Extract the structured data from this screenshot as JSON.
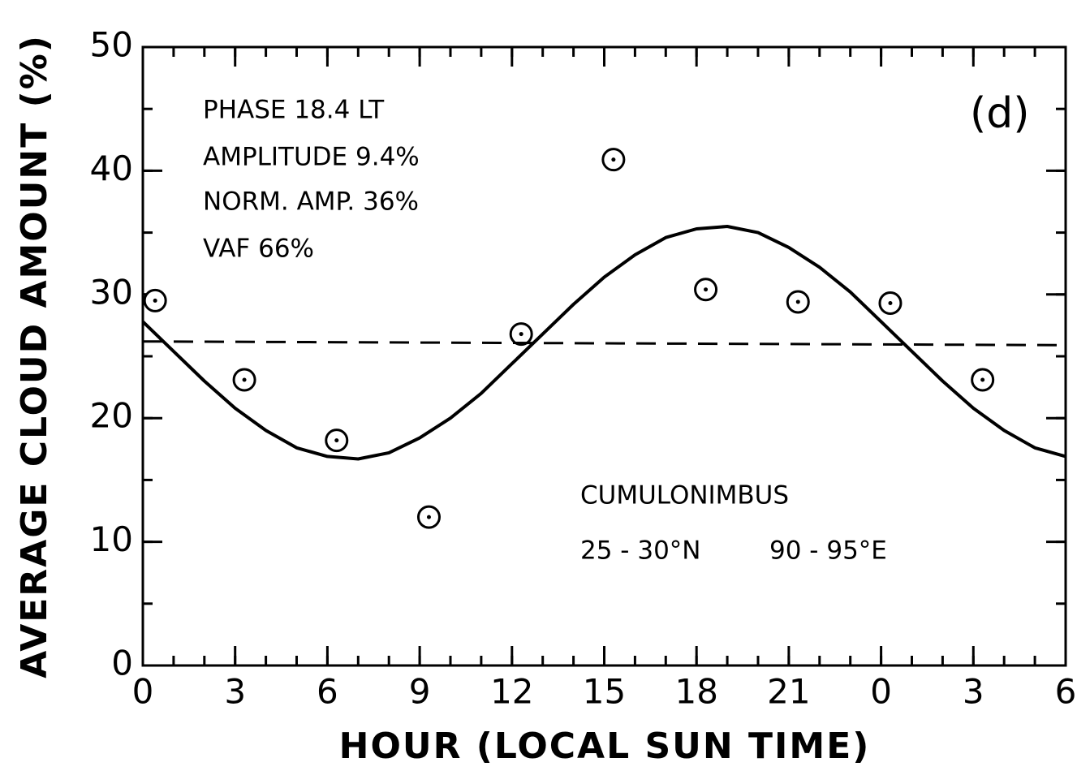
{
  "chart_data": {
    "type": "scatter",
    "xlabel": "HOUR (LOCAL SUN TIME)",
    "ylabel": "AVERAGE CLOUD AMOUNT (%)",
    "xlim": [
      0,
      30
    ],
    "xticks": [
      0,
      3,
      6,
      9,
      12,
      15,
      18,
      21,
      {
        "value": 24,
        "label": "0"
      },
      {
        "value": 27,
        "label": "3"
      },
      {
        "value": 30,
        "label": "6"
      }
    ],
    "ylim": [
      0,
      50
    ],
    "yticks": [
      0,
      10,
      20,
      30,
      40,
      50
    ],
    "annotations": [
      "PHASE 18.4 LT",
      "AMPLITUDE 9.4%",
      "NORM. AMP. 36%",
      "VAF 66%",
      "(d)",
      "CUMULONIMBUS",
      "25 - 30°N",
      "90 - 95°E"
    ],
    "series": [
      {
        "style": "marker",
        "color": "#000000",
        "x": [
          0.4,
          3.3,
          6.3,
          9.3,
          12.3,
          15.3,
          18.3,
          21.3,
          24.3,
          27.3
        ],
        "values": [
          29.5,
          23.1,
          18.2,
          12.0,
          26.8,
          40.9,
          30.4,
          29.4,
          29.3,
          23.1
        ]
      },
      {
        "style": "solid",
        "color": "#000000",
        "x": [
          0,
          1,
          2,
          3,
          4,
          5,
          6,
          7,
          8,
          9,
          10,
          11,
          12,
          13,
          14,
          15,
          16,
          17,
          18,
          19,
          20,
          21,
          22,
          23,
          24,
          25,
          26,
          27,
          28,
          29,
          30
        ],
        "values": [
          27.8,
          25.4,
          23.0,
          20.8,
          19.0,
          17.6,
          16.9,
          16.7,
          17.2,
          18.4,
          20.0,
          22.0,
          24.4,
          26.8,
          29.2,
          31.4,
          33.2,
          34.6,
          35.3,
          35.5,
          35.0,
          33.8,
          32.2,
          30.2,
          27.8,
          25.4,
          23.0,
          20.8,
          19.0,
          17.6,
          16.9
        ]
      },
      {
        "style": "dashed",
        "color": "#000000",
        "x": [
          0,
          30
        ],
        "values": [
          26.2,
          25.9
        ]
      }
    ]
  }
}
